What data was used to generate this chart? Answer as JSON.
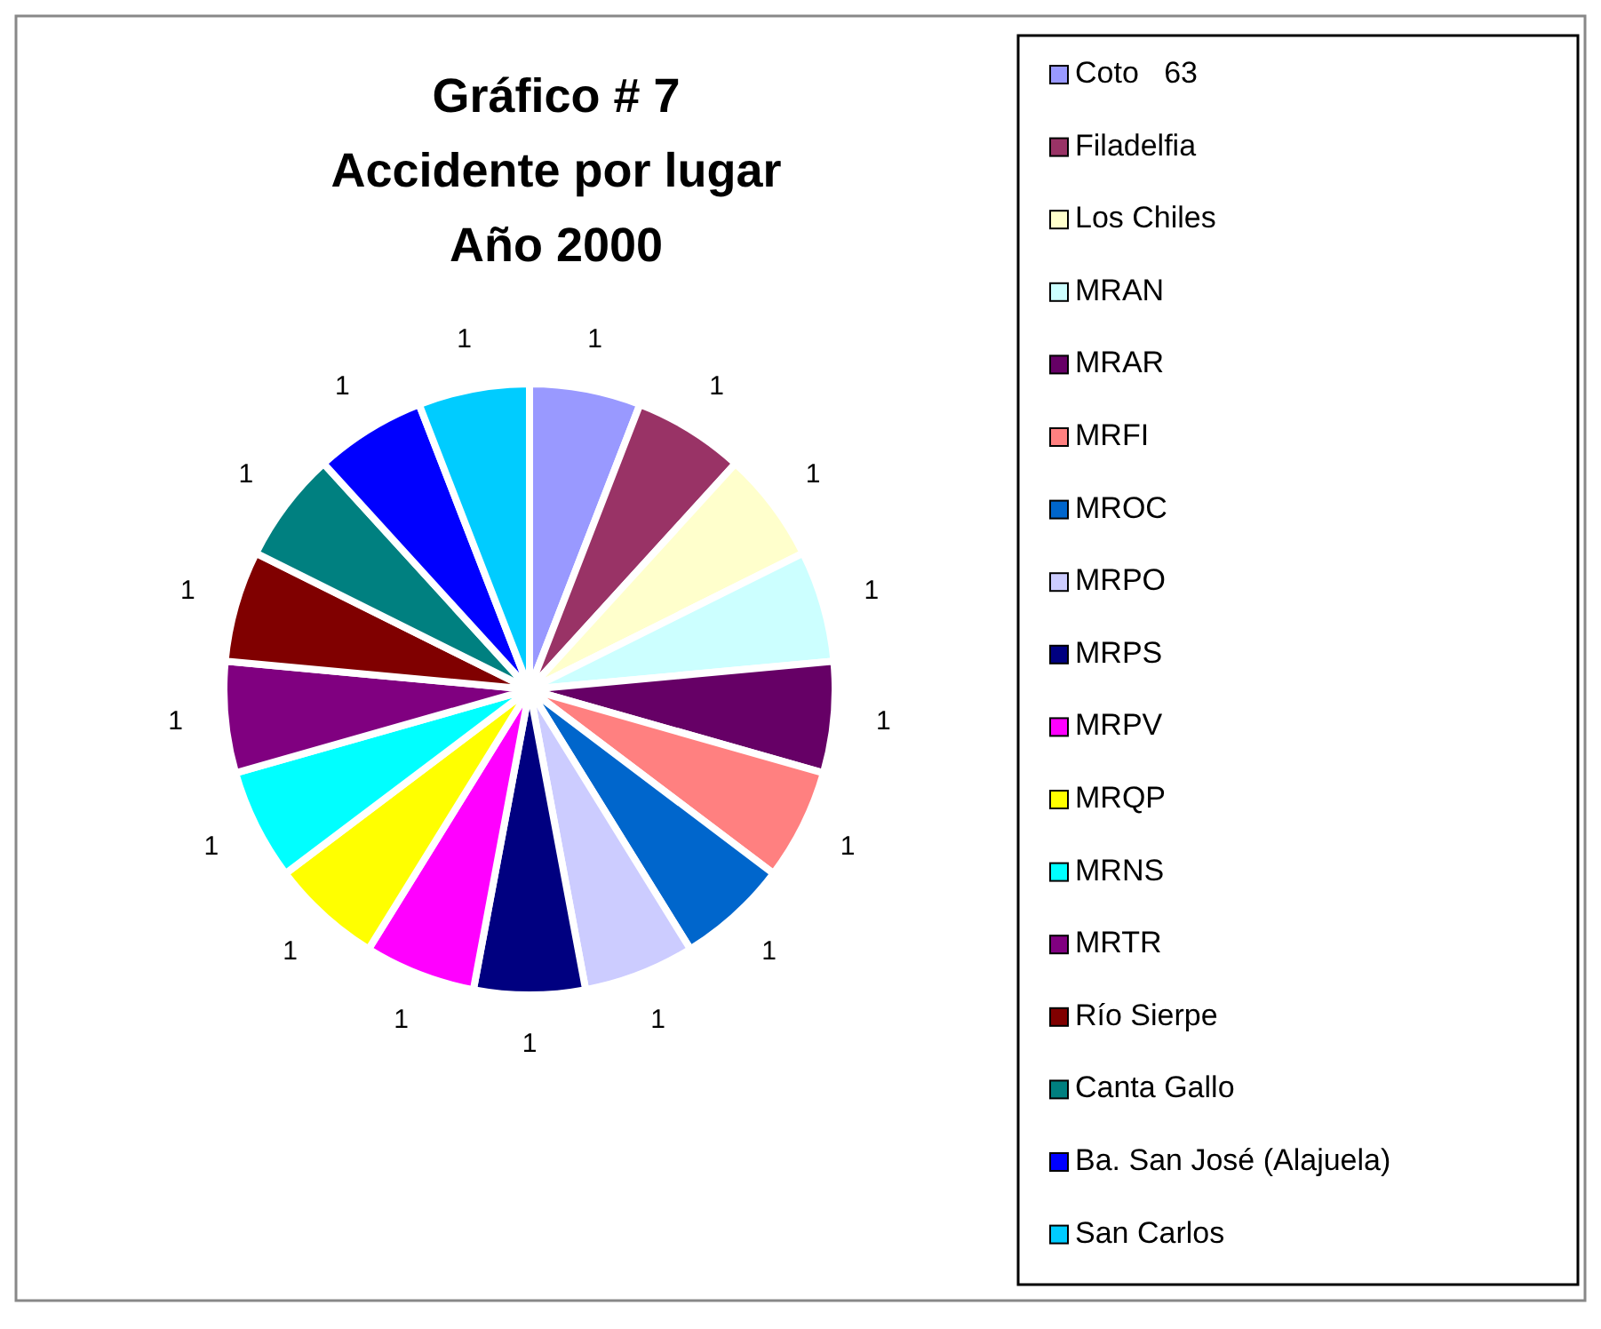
{
  "chart_data": {
    "type": "pie",
    "title": "Gráfico # 7\nAccidente por lugar\nAño 2000",
    "categories": [
      "Coto   63",
      "Filadelfia",
      "Los Chiles",
      "MRAN",
      "MRAR",
      "MRFI",
      "MROC",
      "MRPO",
      "MRPS",
      "MRPV",
      "MRQP",
      "MRNS",
      "MRTR",
      "Río Sierpe",
      "Canta Gallo",
      "Ba. San José (Alajuela)",
      "San Carlos"
    ],
    "values": [
      1,
      1,
      1,
      1,
      1,
      1,
      1,
      1,
      1,
      1,
      1,
      1,
      1,
      1,
      1,
      1,
      1
    ],
    "colors": [
      "#9999ff",
      "#993366",
      "#ffffcc",
      "#ccffff",
      "#660066",
      "#ff8080",
      "#0066cc",
      "#ccccff",
      "#000080",
      "#ff00ff",
      "#ffff00",
      "#00ffff",
      "#800080",
      "#800000",
      "#008080",
      "#0000ff",
      "#00ccff"
    ],
    "data_labels": true,
    "legend": "right"
  }
}
